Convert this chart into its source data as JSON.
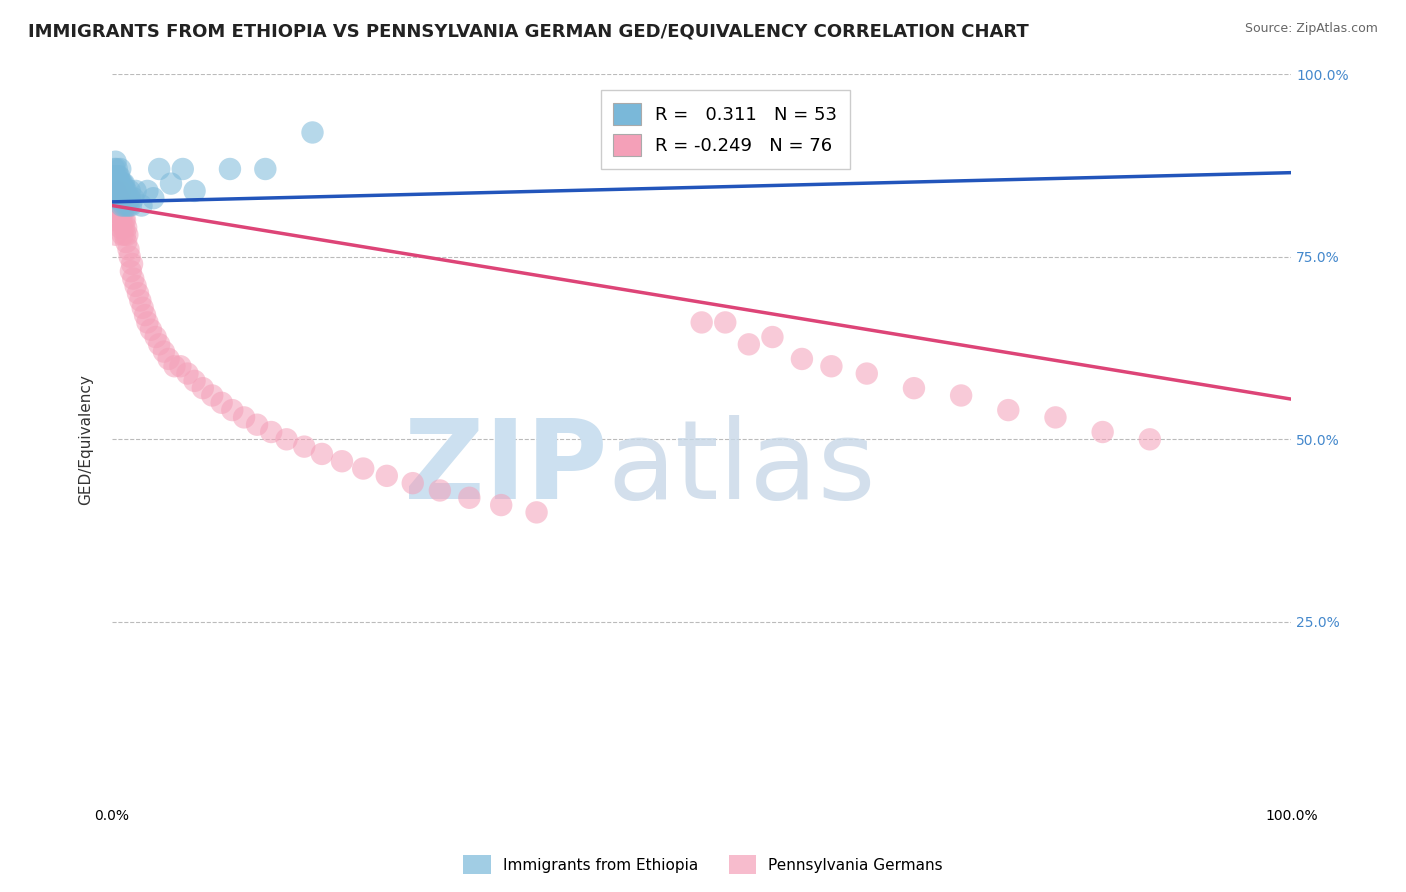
{
  "title": "IMMIGRANTS FROM ETHIOPIA VS PENNSYLVANIA GERMAN GED/EQUIVALENCY CORRELATION CHART",
  "source": "Source: ZipAtlas.com",
  "ylabel": "GED/Equivalency",
  "R1": 0.311,
  "N1": 53,
  "R2": -0.249,
  "N2": 76,
  "legend_label1": "Immigrants from Ethiopia",
  "legend_label2": "Pennsylvania Germans",
  "blue_color": "#7ab8d9",
  "pink_color": "#f4a0b8",
  "blue_line_color": "#2255bb",
  "pink_line_color": "#dd4477",
  "watermark_color": "#cce0f0",
  "background_color": "#ffffff",
  "grid_color": "#bbbbbb",
  "title_fontsize": 13,
  "axis_label_fontsize": 11,
  "tick_fontsize": 10,
  "blue_x": [
    0.001,
    0.002,
    0.002,
    0.003,
    0.003,
    0.003,
    0.004,
    0.004,
    0.004,
    0.005,
    0.005,
    0.005,
    0.005,
    0.006,
    0.006,
    0.006,
    0.006,
    0.007,
    0.007,
    0.007,
    0.007,
    0.008,
    0.008,
    0.008,
    0.008,
    0.009,
    0.009,
    0.009,
    0.01,
    0.01,
    0.01,
    0.01,
    0.011,
    0.011,
    0.012,
    0.012,
    0.013,
    0.014,
    0.015,
    0.015,
    0.016,
    0.018,
    0.02,
    0.025,
    0.03,
    0.035,
    0.04,
    0.05,
    0.06,
    0.07,
    0.1,
    0.13,
    0.17
  ],
  "blue_y": [
    0.86,
    0.87,
    0.85,
    0.84,
    0.86,
    0.88,
    0.83,
    0.85,
    0.87,
    0.84,
    0.85,
    0.86,
    0.83,
    0.84,
    0.85,
    0.83,
    0.86,
    0.84,
    0.83,
    0.85,
    0.87,
    0.84,
    0.83,
    0.85,
    0.82,
    0.84,
    0.83,
    0.85,
    0.83,
    0.84,
    0.82,
    0.85,
    0.83,
    0.84,
    0.82,
    0.84,
    0.83,
    0.82,
    0.83,
    0.84,
    0.82,
    0.83,
    0.84,
    0.82,
    0.84,
    0.83,
    0.87,
    0.85,
    0.87,
    0.84,
    0.87,
    0.87,
    0.92
  ],
  "pink_x": [
    0.001,
    0.002,
    0.003,
    0.003,
    0.004,
    0.004,
    0.005,
    0.005,
    0.006,
    0.006,
    0.007,
    0.007,
    0.007,
    0.008,
    0.008,
    0.009,
    0.009,
    0.01,
    0.01,
    0.01,
    0.011,
    0.011,
    0.012,
    0.012,
    0.013,
    0.014,
    0.015,
    0.016,
    0.017,
    0.018,
    0.02,
    0.022,
    0.024,
    0.026,
    0.028,
    0.03,
    0.033,
    0.037,
    0.04,
    0.044,
    0.048,
    0.053,
    0.058,
    0.064,
    0.07,
    0.077,
    0.085,
    0.093,
    0.102,
    0.112,
    0.123,
    0.135,
    0.148,
    0.163,
    0.178,
    0.195,
    0.213,
    0.233,
    0.255,
    0.278,
    0.303,
    0.33,
    0.36,
    0.5,
    0.52,
    0.54,
    0.56,
    0.585,
    0.61,
    0.64,
    0.68,
    0.72,
    0.76,
    0.8,
    0.84,
    0.88
  ],
  "pink_y": [
    0.8,
    0.82,
    0.84,
    0.78,
    0.83,
    0.81,
    0.82,
    0.8,
    0.83,
    0.81,
    0.79,
    0.82,
    0.84,
    0.8,
    0.82,
    0.78,
    0.81,
    0.8,
    0.82,
    0.79,
    0.78,
    0.8,
    0.77,
    0.79,
    0.78,
    0.76,
    0.75,
    0.73,
    0.74,
    0.72,
    0.71,
    0.7,
    0.69,
    0.68,
    0.67,
    0.66,
    0.65,
    0.64,
    0.63,
    0.62,
    0.61,
    0.6,
    0.6,
    0.59,
    0.58,
    0.57,
    0.56,
    0.55,
    0.54,
    0.53,
    0.52,
    0.51,
    0.5,
    0.49,
    0.48,
    0.47,
    0.46,
    0.45,
    0.44,
    0.43,
    0.42,
    0.41,
    0.4,
    0.66,
    0.66,
    0.63,
    0.64,
    0.61,
    0.6,
    0.59,
    0.57,
    0.56,
    0.54,
    0.53,
    0.51,
    0.5
  ],
  "blue_trend_x": [
    0.0,
    1.0
  ],
  "blue_trend_y": [
    0.825,
    0.865
  ],
  "pink_trend_x": [
    0.0,
    1.0
  ],
  "pink_trend_y": [
    0.82,
    0.555
  ],
  "xlim": [
    0.0,
    1.0
  ],
  "ylim": [
    0.0,
    1.0
  ],
  "ytick_positions": [
    0.25,
    0.5,
    0.75,
    1.0
  ],
  "ytick_labels_right": [
    "25.0%",
    "50.0%",
    "75.0%",
    "100.0%"
  ],
  "xtick_positions": [
    0.0,
    1.0
  ],
  "xtick_labels": [
    "0.0%",
    "100.0%"
  ]
}
